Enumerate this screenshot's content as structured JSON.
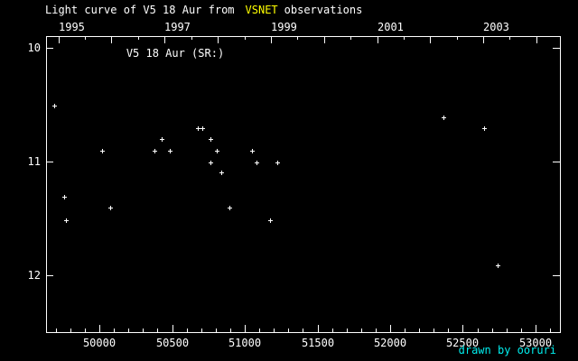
{
  "header": {
    "title_prefix": "Light curve of V5 18 Aur from",
    "title_highlight": "VSNET",
    "title_suffix": "observations",
    "highlight_color": "#ffff00",
    "text_color": "#ffffff"
  },
  "footer": {
    "credit": "drawn by ooruri",
    "credit_color": "#00eeee"
  },
  "chart_data": {
    "type": "scatter",
    "title": "Light curve of V5 18 Aur from VSNET observations",
    "star_label": "V5 18 Aur (SR:)",
    "marker": "plus",
    "marker_color": "#ffffff",
    "axis_color": "#ffffff",
    "background": "#000000",
    "grid": false,
    "legend": false,
    "x_range_jd": [
      49633,
      53168
    ],
    "y_range_mag": [
      9.9,
      12.5
    ],
    "y_axis_inverted_magnitude": true,
    "y_ticks": [
      10,
      11,
      12
    ],
    "y_tick_labels": [
      "10",
      "11",
      "12"
    ],
    "x_major_tick_values": [
      50000,
      50500,
      51000,
      51500,
      52000,
      52500,
      53000
    ],
    "x_major_tick_labels": [
      "50000",
      "50500",
      "51000",
      "51500",
      "52000",
      "52500",
      "53000"
    ],
    "x_minor_step": 100,
    "half_year_offset_days": 183,
    "top_year_ticks": [
      {
        "year": "1995",
        "jd": 49718,
        "labeled": true
      },
      {
        "year": "1996",
        "jd": 50083,
        "labeled": false
      },
      {
        "year": "1997",
        "jd": 50449,
        "labeled": true
      },
      {
        "year": "1998",
        "jd": 50814,
        "labeled": false
      },
      {
        "year": "1999",
        "jd": 51179,
        "labeled": true
      },
      {
        "year": "2000",
        "jd": 51544,
        "labeled": false
      },
      {
        "year": "2001",
        "jd": 51910,
        "labeled": true
      },
      {
        "year": "2002",
        "jd": 52275,
        "labeled": false
      },
      {
        "year": "2003",
        "jd": 52640,
        "labeled": true
      },
      {
        "year": "2004",
        "jd": 53005,
        "labeled": false
      }
    ],
    "points": [
      {
        "jd": 49689,
        "mag": 10.51
      },
      {
        "jd": 49757,
        "mag": 11.31
      },
      {
        "jd": 49770,
        "mag": 11.52
      },
      {
        "jd": 50018,
        "mag": 10.91
      },
      {
        "jd": 50074,
        "mag": 11.41
      },
      {
        "jd": 50378,
        "mag": 10.91
      },
      {
        "jd": 50428,
        "mag": 10.8
      },
      {
        "jd": 50484,
        "mag": 10.91
      },
      {
        "jd": 50677,
        "mag": 10.71
      },
      {
        "jd": 50708,
        "mag": 10.71
      },
      {
        "jd": 50764,
        "mag": 10.8
      },
      {
        "jd": 50764,
        "mag": 11.01
      },
      {
        "jd": 50807,
        "mag": 10.91
      },
      {
        "jd": 50838,
        "mag": 11.1
      },
      {
        "jd": 50894,
        "mag": 11.41
      },
      {
        "jd": 51049,
        "mag": 10.91
      },
      {
        "jd": 51081,
        "mag": 11.01
      },
      {
        "jd": 51174,
        "mag": 11.52
      },
      {
        "jd": 51223,
        "mag": 11.01
      },
      {
        "jd": 52367,
        "mag": 10.61
      },
      {
        "jd": 52646,
        "mag": 10.71
      },
      {
        "jd": 52739,
        "mag": 11.91
      }
    ]
  }
}
